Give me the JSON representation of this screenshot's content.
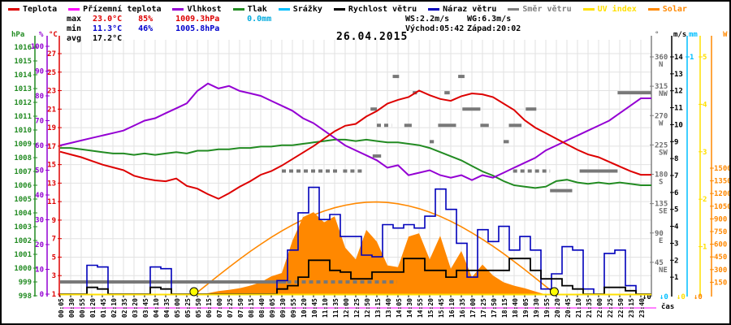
{
  "title": "26.04.2015",
  "legend": [
    {
      "label": "Teplota",
      "color": "#dd0000",
      "text_color": "#000000"
    },
    {
      "label": "Přízemní teplota",
      "color": "#ff00ff",
      "text_color": "#000000"
    },
    {
      "label": "Vlhkost",
      "color": "#9400d3",
      "text_color": "#000000"
    },
    {
      "label": "Tlak",
      "color": "#228b22",
      "text_color": "#000000"
    },
    {
      "label": "Srážky",
      "color": "#00bfff",
      "text_color": "#000000"
    },
    {
      "label": "Rychlost větru",
      "color": "#000000",
      "text_color": "#000000"
    },
    {
      "label": "Náraz větru",
      "color": "#0000bb",
      "text_color": "#000000"
    },
    {
      "label": "Směr větru",
      "color": "#808080",
      "text_color": "#808080"
    },
    {
      "label": "UV index",
      "color": "#ffe000",
      "text_color": "#ffe000"
    },
    {
      "label": "Solar",
      "color": "#ff8800",
      "text_color": "#ff8800"
    }
  ],
  "stats": {
    "max_label": "max",
    "max_temp": "23.0°C",
    "max_hum": "85%",
    "max_pres": "1009.3hPa",
    "max_rain": "0.0mm",
    "min_label": "min",
    "min_temp": "11.3°C",
    "min_hum": "46%",
    "min_pres": "1005.8hPa",
    "avg_label": "avg",
    "avg_temp": "17.2°C",
    "ws": "WS:2.2m/s",
    "wg": "WG:6.3m/s",
    "sunrise": "Východ:05:42",
    "sunset": "Západ:20:02"
  },
  "xaxis_title": "čas",
  "zero_marker_text": "↓0",
  "chart_data": {
    "type": "line",
    "x_labels": [
      "00:05",
      "00:30",
      "00:55",
      "01:20",
      "01:45",
      "02:10",
      "02:35",
      "03:20",
      "03:45",
      "04:10",
      "04:35",
      "05:00",
      "05:25",
      "05:50",
      "06:15",
      "07:00",
      "07:25",
      "07:50",
      "08:15",
      "08:40",
      "09:05",
      "09:30",
      "09:55",
      "10:20",
      "10:45",
      "11:10",
      "11:35",
      "12:00",
      "12:25",
      "12:50",
      "13:15",
      "13:40",
      "14:05",
      "14:30",
      "14:55",
      "15:20",
      "15:45",
      "16:10",
      "16:35",
      "17:00",
      "17:25",
      "17:50",
      "18:15",
      "18:40",
      "19:05",
      "19:30",
      "19:55",
      "20:20",
      "20:45",
      "21:10",
      "21:35",
      "22:00",
      "22:25",
      "22:50",
      "23:15",
      "23:40"
    ],
    "axes": {
      "pressure": {
        "unit": "hPa",
        "color": "#228b22",
        "min": 998,
        "max": 1016,
        "ticks": [
          1016,
          1015,
          1014,
          1013,
          1012,
          1011,
          1010,
          1009,
          1008,
          1007,
          1006,
          1005,
          1004,
          1003,
          1002,
          1001,
          1000,
          999,
          998
        ]
      },
      "humidity": {
        "unit": "%",
        "color": "#9400d3",
        "min": 0,
        "max": 100,
        "ticks": [
          100,
          90,
          80,
          70,
          60,
          50,
          40,
          30,
          20,
          10,
          0
        ]
      },
      "temperature": {
        "unit": "°C",
        "color": "#dd0000",
        "min": 1,
        "max": 27,
        "ticks": [
          27,
          25,
          23,
          21,
          19,
          17,
          15,
          13,
          11,
          9,
          7,
          5,
          3,
          1
        ]
      },
      "direction": {
        "unit": "°",
        "color": "#808080",
        "min": 0,
        "max": 360,
        "ticks": [
          [
            360,
            "N"
          ],
          [
            315,
            "NW"
          ],
          [
            270,
            "W"
          ],
          [
            225,
            "SW"
          ],
          [
            180,
            "S"
          ],
          [
            135,
            "SE"
          ],
          [
            90,
            "E"
          ],
          [
            45,
            "NE"
          ]
        ]
      },
      "wind": {
        "unit": "m/s",
        "color": "#000000",
        "min": 0,
        "max": 14,
        "ticks": [
          14,
          13,
          12,
          11,
          10,
          9,
          8,
          7,
          6,
          5,
          4,
          3,
          2,
          1
        ]
      },
      "rain": {
        "unit": "mm",
        "color": "#00bfff",
        "min": 0,
        "max": 1,
        "ticks": [
          1
        ]
      },
      "uv": {
        "unit": "",
        "color": "#ffe000",
        "min": 0,
        "max": 5,
        "ticks": [
          5,
          4,
          3,
          2,
          1
        ]
      },
      "solar": {
        "unit": "W",
        "color": "#ff8800",
        "min": 0,
        "max": 1500,
        "ticks": [
          1500,
          1350,
          1200,
          1050,
          900,
          750,
          600,
          450,
          300,
          150
        ]
      }
    },
    "series": [
      {
        "name": "Teplota",
        "axis": "temperature",
        "color": "#dd0000",
        "style": "line",
        "values": [
          16.4,
          16.1,
          15.8,
          15.4,
          15.0,
          14.7,
          14.4,
          13.8,
          13.5,
          13.3,
          13.2,
          13.5,
          12.7,
          12.4,
          11.8,
          11.3,
          11.9,
          12.6,
          13.2,
          13.9,
          14.3,
          14.9,
          15.6,
          16.3,
          17.0,
          17.8,
          18.6,
          19.2,
          19.4,
          20.2,
          20.8,
          21.6,
          22.0,
          22.3,
          23.0,
          22.5,
          22.1,
          21.9,
          22.4,
          22.7,
          22.6,
          22.3,
          21.6,
          20.9,
          19.8,
          19.0,
          18.4,
          17.8,
          17.2,
          16.6,
          16.1,
          15.8,
          15.3,
          14.8,
          14.3,
          13.9
        ]
      },
      {
        "name": "Vlhkost",
        "axis": "humidity",
        "color": "#9400d3",
        "style": "line",
        "values": [
          60,
          61,
          62,
          63,
          64,
          65,
          66,
          68,
          70,
          71,
          73,
          75,
          77,
          82,
          85,
          83,
          84,
          82,
          81,
          80,
          78,
          76,
          74,
          71,
          69,
          66,
          63,
          60,
          58,
          56,
          54,
          51,
          52,
          48,
          49,
          50,
          48,
          47,
          48,
          46,
          48,
          47,
          49,
          51,
          53,
          55,
          58,
          60,
          62,
          64,
          66,
          68,
          70,
          73,
          76,
          79
        ]
      },
      {
        "name": "Tlak",
        "axis": "pressure",
        "color": "#228b22",
        "style": "line",
        "values": [
          1008.7,
          1008.7,
          1008.6,
          1008.5,
          1008.4,
          1008.3,
          1008.3,
          1008.2,
          1008.3,
          1008.2,
          1008.3,
          1008.4,
          1008.3,
          1008.5,
          1008.5,
          1008.6,
          1008.6,
          1008.7,
          1008.7,
          1008.8,
          1008.8,
          1008.9,
          1008.9,
          1009.0,
          1009.1,
          1009.2,
          1009.3,
          1009.3,
          1009.2,
          1009.3,
          1009.2,
          1009.1,
          1009.1,
          1009.0,
          1008.9,
          1008.7,
          1008.4,
          1008.1,
          1007.8,
          1007.4,
          1007.0,
          1006.7,
          1006.3,
          1006.0,
          1005.9,
          1005.8,
          1005.9,
          1006.3,
          1006.4,
          1006.2,
          1006.1,
          1006.2,
          1006.1,
          1006.2,
          1006.1,
          1006.0
        ]
      },
      {
        "name": "Rychlost větru",
        "axis": "wind",
        "color": "#000000",
        "style": "step",
        "values": [
          0,
          0,
          0,
          0.4,
          0.3,
          0,
          0,
          0,
          0,
          0.4,
          0.3,
          0,
          0,
          0,
          0,
          0,
          0,
          0,
          0,
          0,
          0,
          0.3,
          0.5,
          1.0,
          2.0,
          2.0,
          1.4,
          1.3,
          0.9,
          0.9,
          1.3,
          1.3,
          1.3,
          2.1,
          2.1,
          1.4,
          1.4,
          1.0,
          1.4,
          1.4,
          1.4,
          1.4,
          1.4,
          2.1,
          2.1,
          1.4,
          0.9,
          0.9,
          0.5,
          0.3,
          0,
          0,
          0.4,
          0.4,
          0.2,
          0
        ]
      },
      {
        "name": "Náraz větru",
        "axis": "wind",
        "color": "#0000bb",
        "style": "step",
        "values": [
          0,
          0,
          0,
          1.7,
          1.6,
          0,
          0,
          0,
          0,
          1.6,
          1.5,
          0,
          0,
          0,
          0,
          0,
          0,
          0,
          0,
          0,
          0,
          0.8,
          2.6,
          4.8,
          6.3,
          4.4,
          4.7,
          3.4,
          3.4,
          2.3,
          2.2,
          4.1,
          3.9,
          4.1,
          3.9,
          4.6,
          6.2,
          5.0,
          3.0,
          1.0,
          3.8,
          3.1,
          4.0,
          2.6,
          3.4,
          2.6,
          0.3,
          1.2,
          2.8,
          2.6,
          0.3,
          0,
          2.4,
          2.6,
          0.5,
          0
        ]
      },
      {
        "name": "Solar",
        "axis": "solar",
        "color": "#ff8800",
        "style": "area",
        "values": [
          0,
          0,
          0,
          0,
          0,
          0,
          0,
          0,
          0,
          0,
          0,
          0,
          0,
          5,
          20,
          45,
          60,
          80,
          110,
          150,
          220,
          260,
          640,
          920,
          980,
          860,
          930,
          560,
          420,
          770,
          630,
          350,
          330,
          690,
          730,
          420,
          700,
          310,
          520,
          210,
          360,
          230,
          150,
          110,
          80,
          40,
          5,
          0,
          0,
          0,
          0,
          0,
          0,
          0,
          0,
          0
        ]
      },
      {
        "name": "Solar max (clear sky)",
        "axis": "solar",
        "color": "#ff8800",
        "style": "line",
        "values": [
          0,
          0,
          0,
          0,
          0,
          0,
          0,
          0,
          0,
          0,
          0,
          0,
          0,
          31,
          131,
          231,
          328,
          423,
          514,
          600,
          682,
          758,
          828,
          891,
          946,
          993,
          1032,
          1062,
          1084,
          1097,
          1100,
          1094,
          1079,
          1054,
          1021,
          980,
          930,
          872,
          807,
          736,
          658,
          576,
          488,
          395,
          300,
          201,
          101,
          0,
          0,
          0,
          0,
          0,
          0,
          0,
          0,
          0
        ]
      },
      {
        "name": "UV index",
        "axis": "uv",
        "color": "#ffe000",
        "style": "flat",
        "constant": 0
      },
      {
        "name": "Srážky",
        "axis": "rain",
        "color": "#00bfff",
        "style": "flat",
        "constant": 0
      }
    ],
    "direction_segments": [
      {
        "i1": 0,
        "i2": 21.4,
        "deg": 15,
        "dashed": false
      },
      {
        "i1": 21.5,
        "i2": 31.9,
        "deg": 15,
        "dashed": true
      },
      {
        "i1": 21.0,
        "i2": 26.4,
        "deg": 185,
        "dashed": true
      },
      {
        "i1": 26.8,
        "i2": 28.8,
        "deg": 185,
        "dashed": true
      },
      {
        "i1": 29.4,
        "i2": 30.0,
        "deg": 280,
        "dashed": false
      },
      {
        "i1": 29.6,
        "i2": 30.4,
        "deg": 208,
        "dashed": false
      },
      {
        "i1": 30.0,
        "i2": 31.4,
        "deg": 255,
        "dashed": true
      },
      {
        "i1": 31.5,
        "i2": 32.1,
        "deg": 330,
        "dashed": false
      },
      {
        "i1": 32.6,
        "i2": 33.3,
        "deg": 255,
        "dashed": false
      },
      {
        "i1": 33.4,
        "i2": 33.8,
        "deg": 305,
        "dashed": false
      },
      {
        "i1": 35.0,
        "i2": 35.4,
        "deg": 230,
        "dashed": false
      },
      {
        "i1": 35.8,
        "i2": 37.5,
        "deg": 255,
        "dashed": false
      },
      {
        "i1": 36.4,
        "i2": 36.9,
        "deg": 305,
        "dashed": false
      },
      {
        "i1": 37.7,
        "i2": 38.3,
        "deg": 330,
        "dashed": false
      },
      {
        "i1": 38.1,
        "i2": 39.8,
        "deg": 280,
        "dashed": false
      },
      {
        "i1": 39.8,
        "i2": 40.6,
        "deg": 255,
        "dashed": false
      },
      {
        "i1": 42.0,
        "i2": 42.5,
        "deg": 230,
        "dashed": false
      },
      {
        "i1": 42.5,
        "i2": 43.7,
        "deg": 255,
        "dashed": false
      },
      {
        "i1": 44.1,
        "i2": 45.1,
        "deg": 280,
        "dashed": false
      },
      {
        "i1": 42.9,
        "i2": 46.4,
        "deg": 185,
        "dashed": true
      },
      {
        "i1": 46.4,
        "i2": 48.5,
        "deg": 155,
        "dashed": false
      },
      {
        "i1": 49.2,
        "i2": 52.8,
        "deg": 185,
        "dashed": false
      },
      {
        "i1": 52.8,
        "i2": 56.0,
        "deg": 305,
        "dashed": false
      }
    ],
    "sun_markers": [
      {
        "i": 12.68,
        "name": "sunrise"
      },
      {
        "i": 46.8,
        "name": "sunset"
      }
    ],
    "zero_markers": [
      "#000000",
      "#00bfff",
      "#ffe000",
      "#ff8800"
    ],
    "grid": true,
    "legend_position": "top"
  }
}
